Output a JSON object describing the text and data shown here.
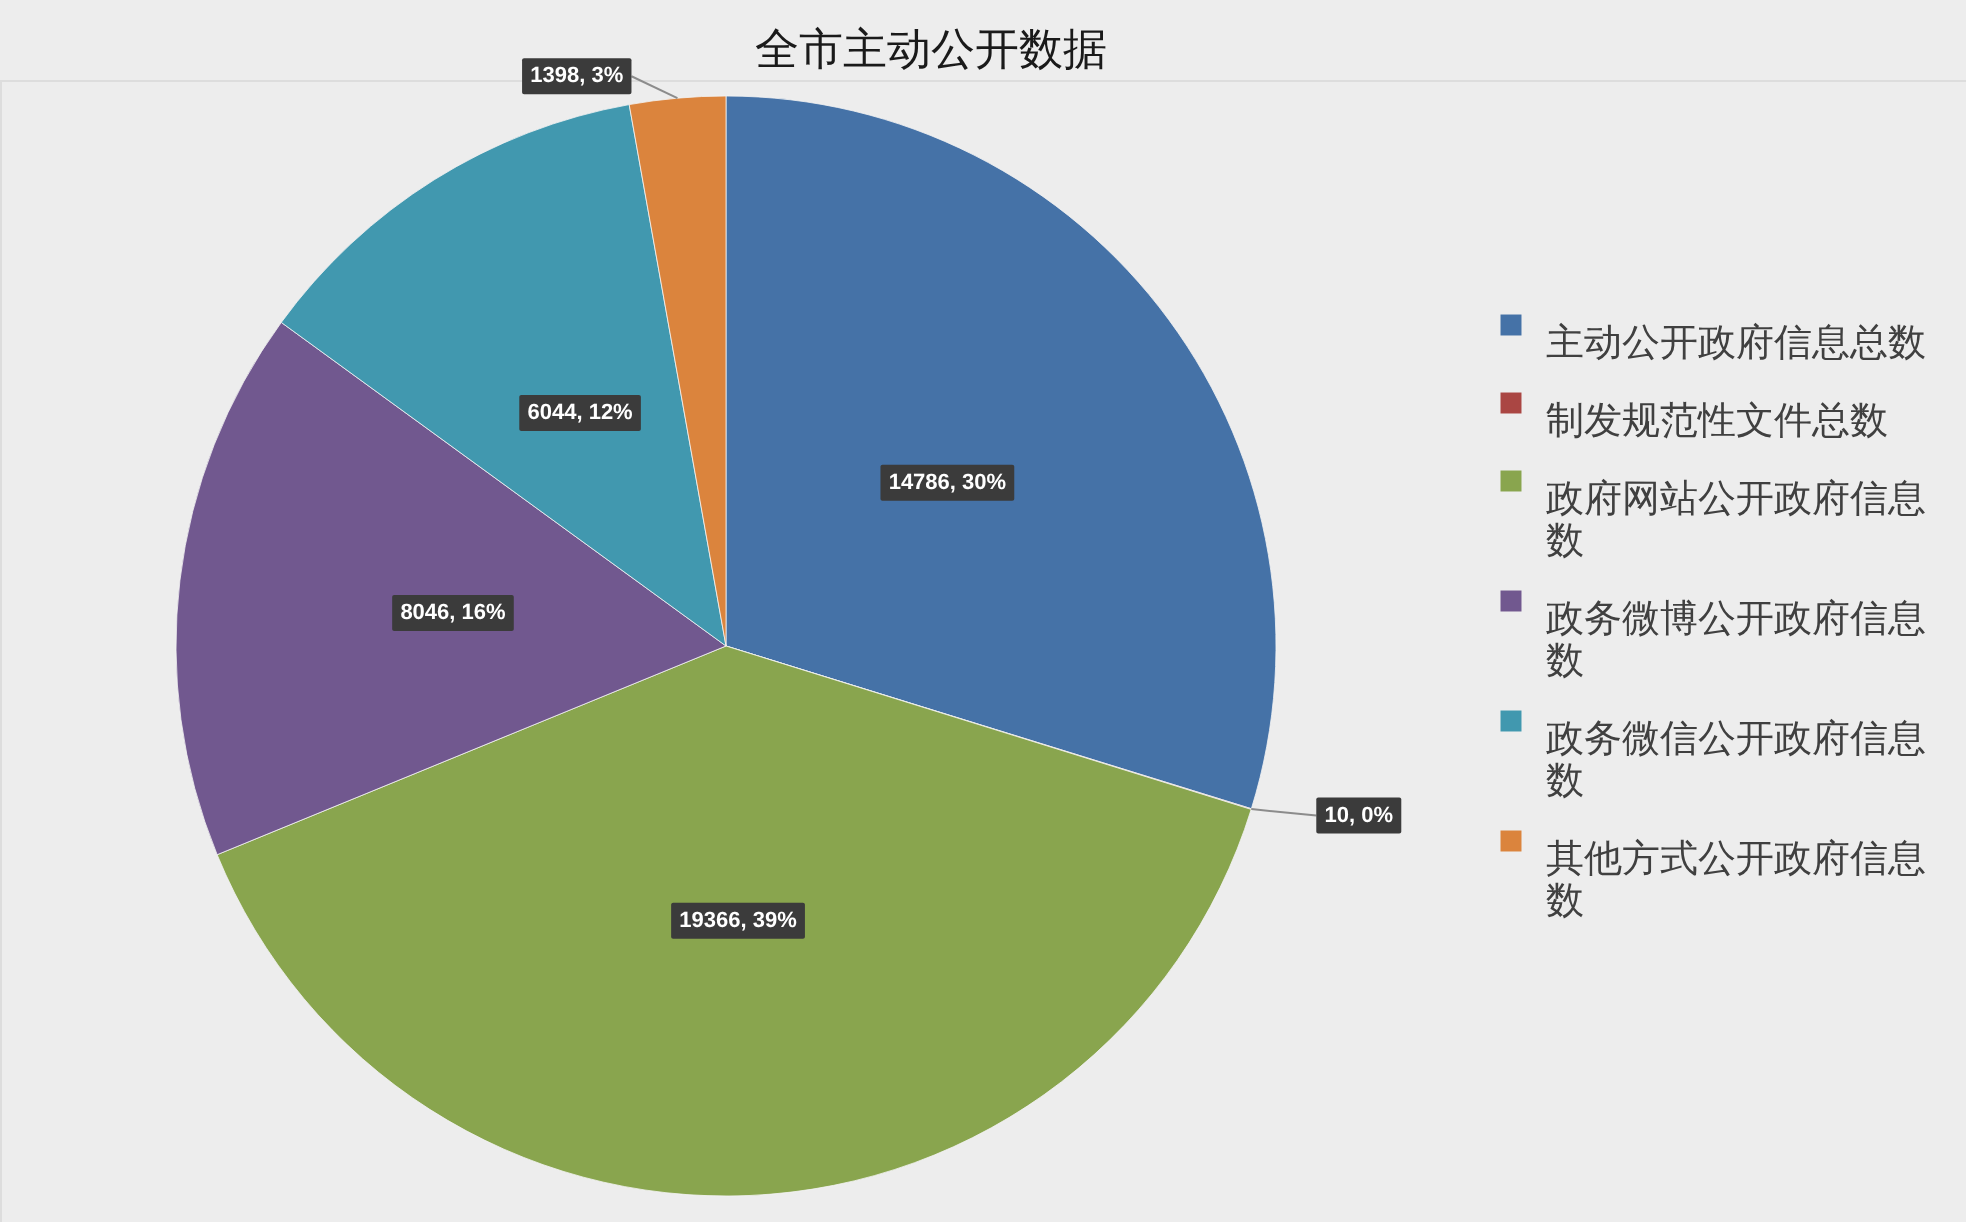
{
  "chart_data": {
    "type": "pie",
    "title": "全市主动公开数据",
    "categories": [
      "主动公开政府信息总数",
      "制发规范性文件总数",
      "政府网站公开政府信息数",
      "政务微博公开政府信息数",
      "政务微信公开政府信息数",
      "其他方式公开政府信息数"
    ],
    "values": [
      14786,
      10,
      19366,
      8046,
      6044,
      1398
    ],
    "colors": [
      "#4572a7",
      "#aa4643",
      "#89a54e",
      "#71588f",
      "#4198af",
      "#db843d"
    ],
    "value_labels": [
      "14786, 30%",
      "10, 0%",
      "19366, 39%",
      "8046, 16%",
      "6044, 12%",
      "1398, 3%"
    ],
    "legend": "right"
  }
}
